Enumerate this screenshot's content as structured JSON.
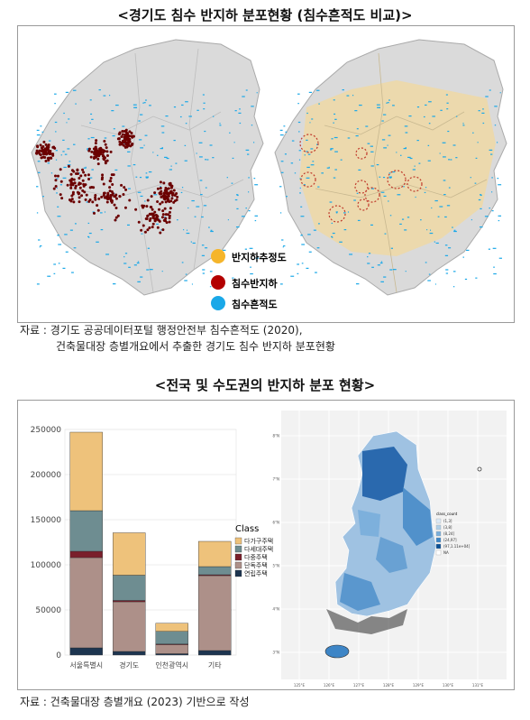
{
  "top": {
    "title": "<경기도 침수 반지하 분포현황 (침수흔적도 비교)>",
    "legend": [
      {
        "label": "반지하추정도",
        "color": "#f5b52b"
      },
      {
        "label": "침수반지하",
        "color": "#b30000"
      },
      {
        "label": "침수흔적도",
        "color": "#1aa8e8"
      }
    ],
    "source_line1": "자료 : 경기도 공공데이터포털 행정안전부 침수흔적도 (2020),",
    "source_line2": "건축물대장 층별개요에서 추출한 경기도 침수 반지하 분포현황"
  },
  "bottom": {
    "title": "<전국 및 수도권의 반지하 분포 현황>",
    "source": "자료 : 건축물대장 층별개요 (2023) 기반으로 작성",
    "map_legend": {
      "title": "class_count",
      "items": [
        "(1,3]",
        "(3,8]",
        "(8,24]",
        "(24,97]",
        "(97,1.11e+04]",
        "NA"
      ],
      "colors": [
        "#dbe9f6",
        "#b0cfe8",
        "#79aedb",
        "#3d85c6",
        "#0b4f94",
        "#ffffff"
      ]
    },
    "map_axis": {
      "y": [
        "38°N",
        "37°N",
        "36°N",
        "35°N",
        "34°N",
        "33°N"
      ],
      "x": [
        "125°E",
        "126°E",
        "127°E",
        "128°E",
        "129°E",
        "130°E",
        "131°E"
      ]
    }
  },
  "chart_data": {
    "type": "bar",
    "stacked": true,
    "categories": [
      "서울특별시",
      "경기도",
      "인천광역시",
      "기타"
    ],
    "series": [
      {
        "name": "다가구주택",
        "color": "#eec27b",
        "values": [
          87000,
          47000,
          9000,
          28000
        ]
      },
      {
        "name": "다세대주택",
        "color": "#6e8d91",
        "values": [
          45000,
          28000,
          14000,
          9000
        ]
      },
      {
        "name": "다중주택",
        "color": "#7a1f2b",
        "values": [
          7000,
          1500,
          700,
          1000
        ]
      },
      {
        "name": "단독주택",
        "color": "#ad9089",
        "values": [
          100000,
          55000,
          10000,
          83000
        ]
      },
      {
        "name": "연립주택",
        "color": "#1d3550",
        "values": [
          8000,
          4000,
          1500,
          5000
        ]
      }
    ],
    "stack_order_bottom_to_top": [
      "연립주택",
      "단독주택",
      "다중주택",
      "다세대주택",
      "다가구주택"
    ],
    "ylim": [
      0,
      250000
    ],
    "yticks": [
      0,
      50000,
      100000,
      150000,
      200000,
      250000
    ],
    "legend_title": "Class",
    "legend_position": "right"
  }
}
